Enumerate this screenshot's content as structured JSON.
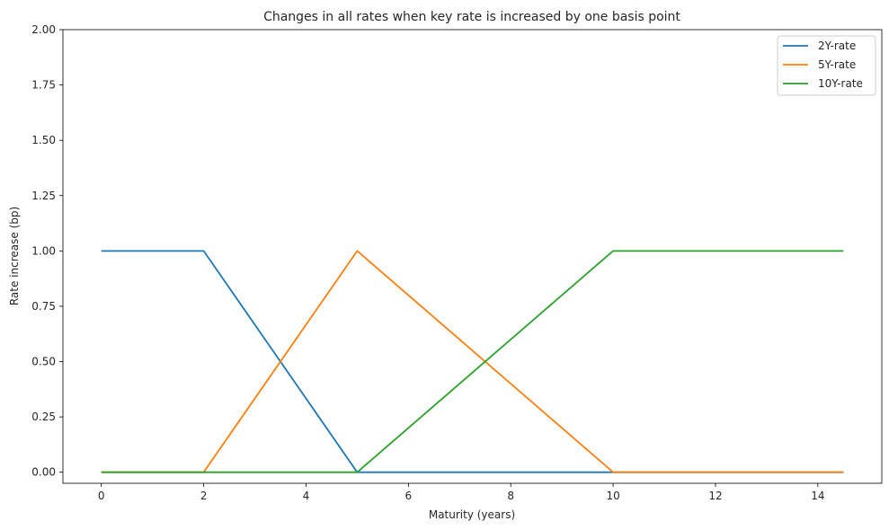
{
  "chart_data": {
    "type": "line",
    "title": "Changes in all rates when key rate is increased by one basis point",
    "xlabel": "Maturity (years)",
    "ylabel": "Rate increase (bp)",
    "xlim": [
      -0.75,
      15.25
    ],
    "ylim": [
      -0.05,
      2.0
    ],
    "x_ticks": [
      0,
      2,
      4,
      6,
      8,
      10,
      12,
      14
    ],
    "y_ticks": [
      0.0,
      0.25,
      0.5,
      0.75,
      1.0,
      1.25,
      1.5,
      1.75,
      2.0
    ],
    "y_tick_labels": [
      "0.00",
      "0.25",
      "0.50",
      "0.75",
      "1.00",
      "1.25",
      "1.50",
      "1.75",
      "2.00"
    ],
    "grid": false,
    "legend_position": "top-right",
    "series": [
      {
        "name": "2Y-rate",
        "color": "#1f77b4",
        "x": [
          0,
          2,
          5,
          10,
          14.5
        ],
        "values": [
          1,
          1,
          0,
          0,
          0
        ]
      },
      {
        "name": "5Y-rate",
        "color": "#ff7f0e",
        "x": [
          0,
          2,
          5,
          10,
          14.5
        ],
        "values": [
          0,
          0,
          1,
          0,
          0
        ]
      },
      {
        "name": "10Y-rate",
        "color": "#2ca02c",
        "x": [
          0,
          2,
          5,
          10,
          14.5
        ],
        "values": [
          0,
          0,
          0,
          1,
          1
        ]
      }
    ]
  }
}
